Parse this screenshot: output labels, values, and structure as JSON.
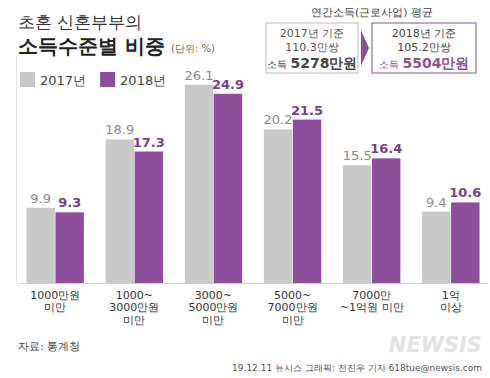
{
  "chart_data": {
    "type": "bar",
    "title": [
      "초혼 신혼부부의",
      "소득수준별 비중"
    ],
    "unit": "(단위: %)",
    "categories": [
      "1000만원\n미만",
      "1000~\n3000만원\n미만",
      "3000~\n5000만원\n미만",
      "5000~\n7000만원\n미만",
      "7000만\n~1억원 미만",
      "1억\n이상"
    ],
    "series": [
      {
        "name": "2017년",
        "color": "#c9c9c9",
        "values": [
          9.9,
          18.9,
          26.1,
          20.2,
          15.5,
          9.4
        ]
      },
      {
        "name": "2018년",
        "color": "#8d4f99",
        "values": [
          9.3,
          17.3,
          24.9,
          21.5,
          16.4,
          10.6
        ]
      }
    ],
    "ylim": [
      0,
      30
    ],
    "tick_labels": "x",
    "data_labels": true,
    "legend": "top-left",
    "annotations": {
      "heading": "연간소득(근로사업) 평균",
      "boxes": [
        {
          "label": "2017년 기준",
          "count": "110.3만쌍",
          "prefix": "소득",
          "amount": "5278만원"
        },
        {
          "label": "2018년 기준",
          "count": "105.2만쌍",
          "prefix": "소득",
          "amount": "5504만원"
        }
      ],
      "source": "자료: 통계청",
      "credit": "19.12.11 뉴시스 그래픽: 전진우 기자 618tue@newsis.com",
      "watermark": "NEWSIS"
    }
  }
}
